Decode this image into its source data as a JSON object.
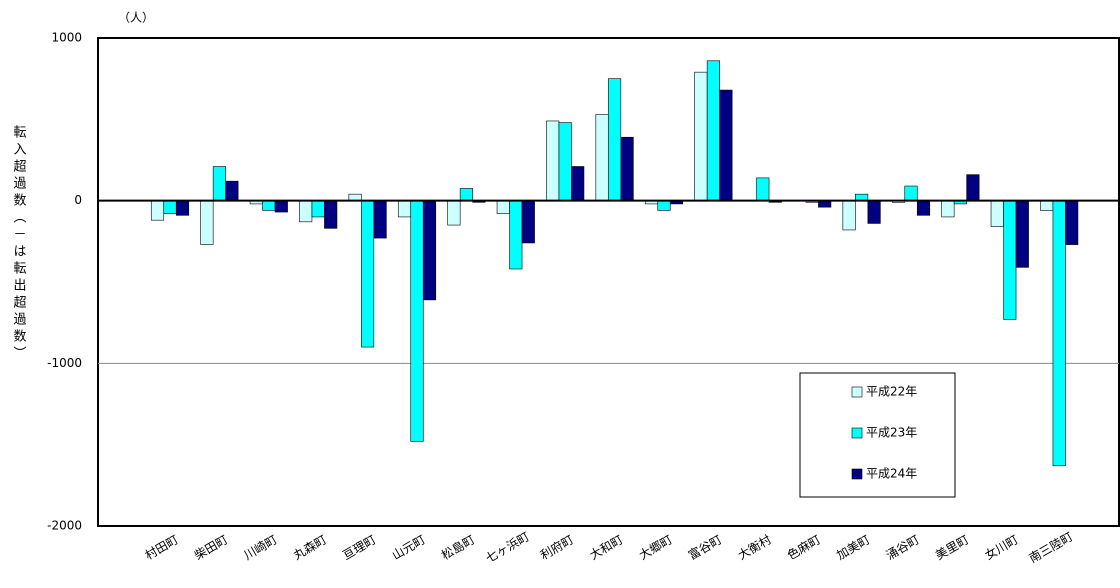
{
  "chart_data": {
    "type": "bar",
    "unit": "（人）",
    "y_label": "転入超過数（－は転出超過数）",
    "categories": [
      "村田町",
      "柴田町",
      "川崎町",
      "丸森町",
      "亘理町",
      "山元町",
      "松島町",
      "七ヶ浜町",
      "利府町",
      "大和町",
      "大郷町",
      "富谷町",
      "大衡村",
      "色麻町",
      "加美町",
      "涌谷町",
      "美里町",
      "女川町",
      "南三陸町"
    ],
    "series": [
      {
        "name": "平成22年",
        "color": "#ccffff",
        "values": [
          -120,
          -270,
          -20,
          -130,
          40,
          -100,
          -150,
          -80,
          490,
          530,
          -20,
          790,
          0,
          0,
          -180,
          -10,
          -100,
          -160,
          -60
        ]
      },
      {
        "name": "平成23年",
        "color": "#00ffff",
        "values": [
          -80,
          210,
          -60,
          -100,
          -900,
          -1480,
          75,
          -420,
          480,
          750,
          -60,
          860,
          140,
          -10,
          40,
          90,
          -20,
          -730,
          -1630
        ]
      },
      {
        "name": "平成24年",
        "color": "#000080",
        "values": [
          -90,
          120,
          -70,
          -170,
          -230,
          -610,
          -10,
          -260,
          210,
          390,
          -20,
          680,
          -10,
          -40,
          -140,
          -90,
          160,
          -410,
          -270
        ]
      }
    ],
    "ylim": [
      -2000,
      1000
    ],
    "yticks": [
      -2000,
      -1000,
      0,
      1000
    ],
    "grid": true
  }
}
